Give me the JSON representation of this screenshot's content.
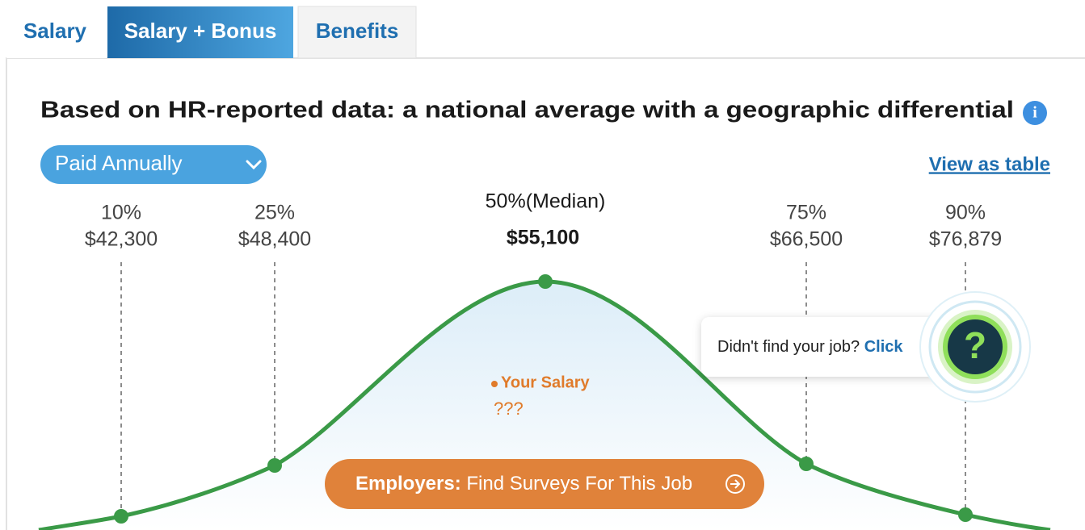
{
  "tabs": [
    "Salary",
    "Salary + Bonus",
    "Benefits"
  ],
  "heading": "Based on HR-reported data: a national average with a geographic differential",
  "dropdown": "Paid Annually",
  "view_link": "View as table",
  "percentiles": [
    {
      "label": "10%",
      "value": "$42,300"
    },
    {
      "label": "25%",
      "value": "$48,400"
    },
    {
      "label": "50%(Median)",
      "value": "$55,100"
    },
    {
      "label": "75%",
      "value": "$66,500"
    },
    {
      "label": "90%",
      "value": "$76,879"
    }
  ],
  "your_salary": {
    "label": "Your Salary",
    "value": "???"
  },
  "button": {
    "bold": "Employers:",
    "text": "Find Surveys For This Job"
  },
  "help": {
    "text": "Didn't find your job?",
    "link": "Click"
  }
}
